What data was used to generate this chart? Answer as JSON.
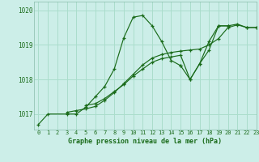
{
  "title": "Graphe pression niveau de la mer (hPa)",
  "background_color": "#cceee8",
  "grid_color": "#aaddcc",
  "line_color": "#1a6b1a",
  "xlim": [
    -0.5,
    23
  ],
  "ylim": [
    1016.55,
    1020.25
  ],
  "yticks": [
    1017,
    1018,
    1019,
    1020
  ],
  "xticks": [
    0,
    1,
    2,
    3,
    4,
    5,
    6,
    7,
    8,
    9,
    10,
    11,
    12,
    13,
    14,
    15,
    16,
    17,
    18,
    19,
    20,
    21,
    22,
    23
  ],
  "series": [
    {
      "x": [
        0,
        1,
        3,
        4,
        5,
        6,
        7,
        8,
        9,
        10,
        11,
        12,
        13,
        14,
        15
      ],
      "y": [
        1016.7,
        1017.0,
        1017.0,
        1017.0,
        1017.2,
        1017.5,
        1017.8,
        1018.3,
        1019.2,
        1019.8,
        1019.85,
        1019.55,
        1019.1,
        1018.55,
        1018.4
      ]
    },
    {
      "x": [
        3,
        4,
        5,
        6,
        7,
        8,
        9,
        10,
        11,
        12,
        13,
        14,
        15,
        16,
        17,
        18,
        19,
        20,
        21,
        22,
        23
      ],
      "y": [
        1017.05,
        1017.1,
        1017.15,
        1017.22,
        1017.4,
        1017.62,
        1017.88,
        1018.15,
        1018.42,
        1018.62,
        1018.72,
        1018.78,
        1018.82,
        1018.85,
        1018.88,
        1019.0,
        1019.18,
        1019.5,
        1019.58,
        1019.5,
        1019.5
      ]
    },
    {
      "x": [
        5,
        6,
        7,
        8,
        9,
        10,
        11,
        12,
        13,
        14,
        15,
        16,
        17,
        18,
        19,
        20
      ],
      "y": [
        1017.25,
        1017.3,
        1017.45,
        1017.65,
        1017.85,
        1018.1,
        1018.3,
        1018.5,
        1018.6,
        1018.65,
        1018.7,
        1018.0,
        1018.45,
        1018.85,
        1019.55,
        1019.55
      ]
    },
    {
      "x": [
        15,
        16,
        17,
        18,
        19,
        20,
        21,
        22,
        23
      ],
      "y": [
        1018.4,
        1018.0,
        1018.45,
        1019.1,
        1019.55,
        1019.55,
        1019.6,
        1019.5,
        1019.5
      ]
    }
  ]
}
